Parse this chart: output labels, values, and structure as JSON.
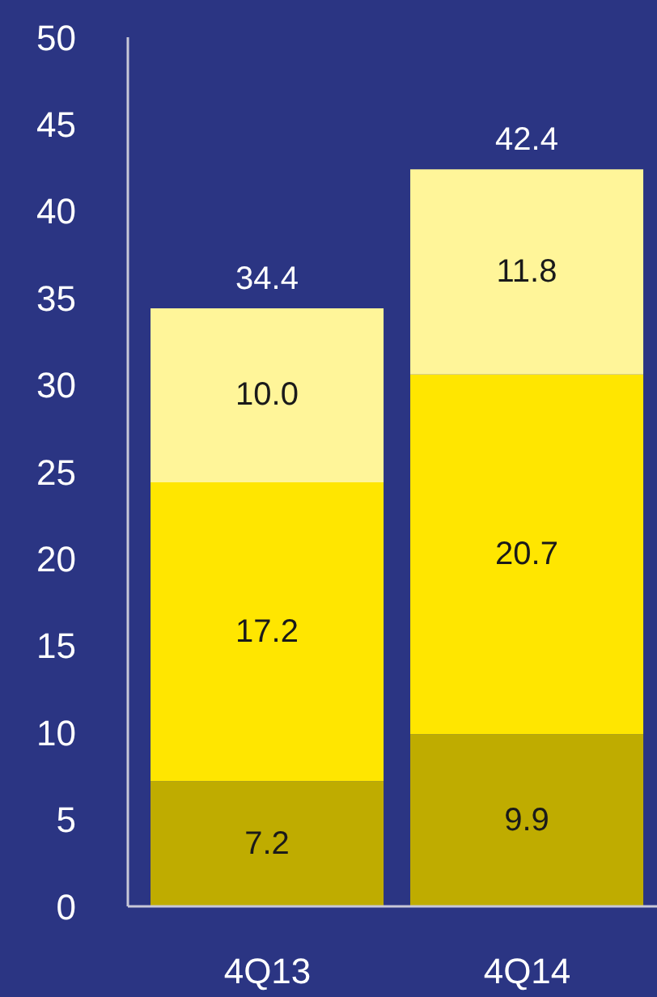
{
  "chart_data": {
    "type": "bar",
    "categories": [
      "4Q13",
      "4Q14"
    ],
    "series": [
      {
        "color": "#bfac00",
        "values": [
          7.2,
          9.9
        ],
        "value_labels": [
          "7.2",
          "9.9"
        ]
      },
      {
        "color": "#ffe600",
        "values": [
          17.2,
          20.7
        ],
        "value_labels": [
          "17.2",
          "20.7"
        ]
      },
      {
        "color": "#fff599",
        "values": [
          10.0,
          11.8
        ],
        "value_labels": [
          "10.0",
          "11.8"
        ]
      }
    ],
    "stacked": true,
    "totals": [
      "34.4",
      "42.4"
    ],
    "ylim": [
      0,
      50
    ],
    "yticks": [
      0,
      5,
      10,
      15,
      20,
      25,
      30,
      35,
      40,
      45,
      50
    ]
  }
}
